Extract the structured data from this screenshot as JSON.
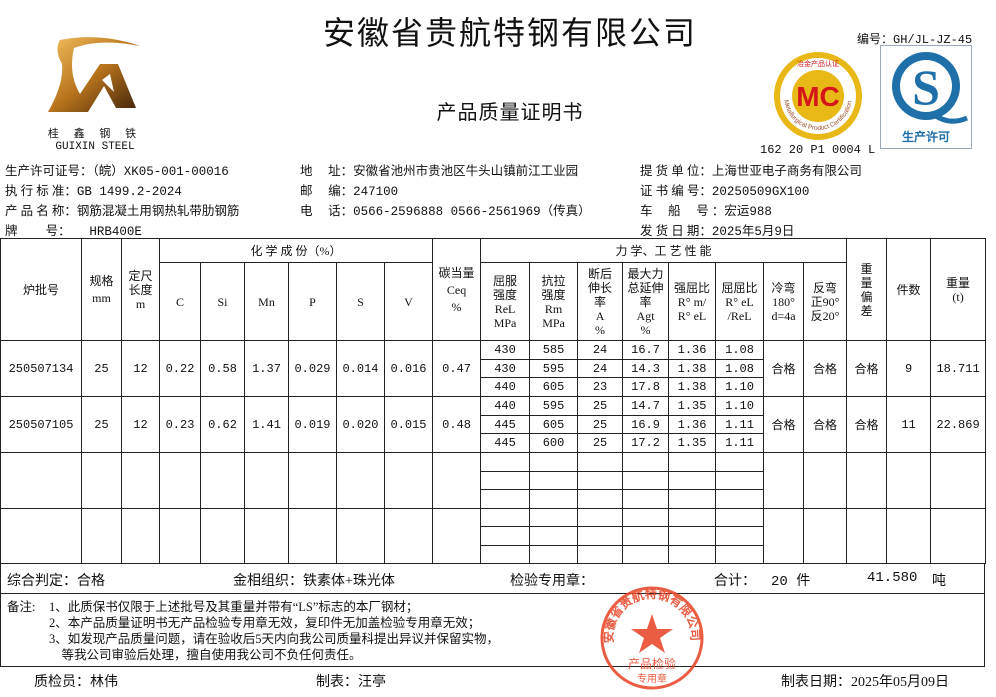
{
  "header": {
    "company": "安徽省贵航特钢有限公司",
    "document_title": "产品质量证明书",
    "doc_number": "编号：GH/JL-JZ-45",
    "cert_code": "162 20 P1 0004 L",
    "logo": {
      "brand_cn": "桂 鑫 钢 铁",
      "brand_en": "GUIXIN  STEEL",
      "color": "#b8741c"
    },
    "mc_logo": {
      "letters": "MC",
      "ring_text_cn": "冶金产品认证",
      "ring_text_en": "Metallurgical Product Certification",
      "ring_color": "#e8b817",
      "text_color": "#d4161b"
    },
    "qs_logo": {
      "caption": "生产许可",
      "color": "#1f6fa8"
    }
  },
  "info": {
    "left": [
      {
        "label": "生产许可证号：",
        "value": "（皖）XK05-001-00016"
      },
      {
        "label": "执 行 标 准：",
        "value": "GB 1499.2-2024"
      },
      {
        "label": "产 品 名 称：",
        "value": "钢筋混凝土用钢热轧带肋钢筋"
      },
      {
        "label": "牌　　 号：",
        "value": "　　HRB400E"
      }
    ],
    "middle": [
      {
        "label": "地　 址：",
        "value": "安徽省池州市贵池区牛头山镇前江工业园"
      },
      {
        "label": "邮　 编：",
        "value": "247100"
      },
      {
        "label": "电　 话：",
        "value": "0566-2596888  0566-2561969（传真）"
      }
    ],
    "right": [
      {
        "label": "提 货 单 位：",
        "value": "上海世亚电子商务有限公司"
      },
      {
        "label": "证 书 编 号：",
        "value": "20250509GX100"
      },
      {
        "label": "车　 船　 号 ：",
        "value": "宏运988"
      },
      {
        "label": "发 货 日 期：",
        "value": "2025年5月9日"
      }
    ]
  },
  "table": {
    "headers": {
      "heat_no": "炉批号",
      "spec": [
        "规格",
        "mm"
      ],
      "length": [
        "定尺",
        "长度",
        "m"
      ],
      "chem_group": "化 学 成 份（%）",
      "chem": [
        "C",
        "Si",
        "Mn",
        "P",
        "S",
        "V"
      ],
      "ceq": [
        "碳当量",
        "Ceq",
        "%"
      ],
      "mech_group": "力 学、工 艺 性 能",
      "mech": [
        [
          "屈服",
          "强度",
          "ReL",
          "MPa"
        ],
        [
          "抗拉",
          "强度",
          "Rm",
          "MPa"
        ],
        [
          "断后",
          "伸长",
          "率",
          "A",
          "%"
        ],
        [
          "最大力",
          "总延伸",
          "率",
          "Agt",
          "%"
        ],
        [
          "强屈比",
          "R° m/",
          "R° eL"
        ],
        [
          "屈屈比",
          "R° eL",
          "/ReL"
        ],
        [
          "冷弯",
          "180°",
          "d=4a"
        ],
        [
          "反弯",
          "正90°",
          "反20°"
        ]
      ],
      "weight_dev": [
        "重",
        "量",
        "偏",
        "差"
      ],
      "pieces": "件数",
      "weight": [
        "重量",
        "(t)"
      ]
    },
    "rows": [
      {
        "heat_no": "250507134",
        "spec": "25",
        "length": "12",
        "chem": [
          "0.22",
          "0.58",
          "1.37",
          "0.029",
          "0.014",
          "0.016"
        ],
        "ceq": "0.47",
        "mech": [
          [
            "430",
            "585",
            "24",
            "16.7",
            "1.36",
            "1.08"
          ],
          [
            "430",
            "595",
            "24",
            "14.3",
            "1.38",
            "1.08"
          ],
          [
            "440",
            "605",
            "23",
            "17.8",
            "1.38",
            "1.10"
          ]
        ],
        "cold_bend": "合格",
        "reverse_bend": "合格",
        "weight_dev": "合格",
        "pieces": "9",
        "weight": "18.711"
      },
      {
        "heat_no": "250507105",
        "spec": "25",
        "length": "12",
        "chem": [
          "0.23",
          "0.62",
          "1.41",
          "0.019",
          "0.020",
          "0.015"
        ],
        "ceq": "0.48",
        "mech": [
          [
            "440",
            "595",
            "25",
            "14.7",
            "1.35",
            "1.10"
          ],
          [
            "445",
            "605",
            "25",
            "16.9",
            "1.36",
            "1.11"
          ],
          [
            "445",
            "600",
            "25",
            "17.2",
            "1.35",
            "1.11"
          ]
        ],
        "cold_bend": "合格",
        "reverse_bend": "合格",
        "weight_dev": "合格",
        "pieces": "11",
        "weight": "22.869"
      }
    ],
    "empty_rows": 2
  },
  "summary": {
    "judgement": "综合判定：合格",
    "structure": "金相组织：铁素体+珠光体",
    "stamp_label": "检验专用章：",
    "total_label": "合计：",
    "total_pieces": "20 件",
    "total_weight": "41.580",
    "weight_unit": "吨"
  },
  "notes": {
    "label": "备注:",
    "lines": [
      "1、此质保书仅限于上述批号及其重量并带有“LS”标志的本厂钢材；",
      "2、本产品质量证明书无产品检验专用章无效，复印件无加盖检验专用章无效；",
      "3、如发现产品质量问题，请在验收后5天内向我公司质量科提出异议并保留实物，",
      "　等我公司审验后处理，擅自使用我公司不负任何责任。"
    ]
  },
  "stamp": {
    "ring_text": "安徽省贵航特钢有限公司",
    "center_text": "产品检验",
    "bottom_text": "专用章",
    "color": "#e8472a"
  },
  "footer": {
    "inspector": "质检员：林伟",
    "preparer": "制表：汪亭",
    "date": "制表日期：2025年05月09日"
  }
}
